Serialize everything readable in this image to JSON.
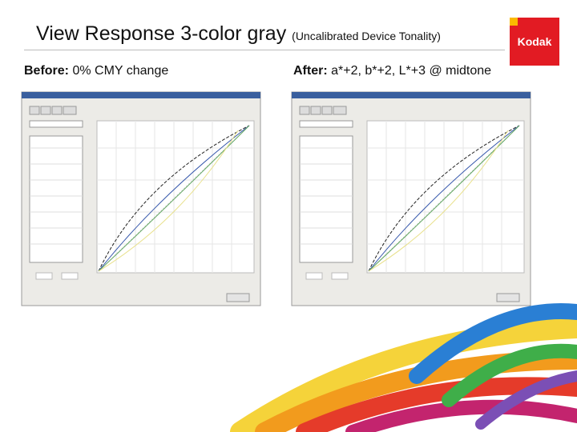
{
  "title": "View Response 3-color gray",
  "subtitle": "(Uncalibrated Device Tonality)",
  "logo": "Kodak",
  "before": {
    "label": "Before:",
    "text": "0% CMY change"
  },
  "after": {
    "label": "After:",
    "text": "a*+2,  b*+2,  L*+3 @ midtone"
  }
}
